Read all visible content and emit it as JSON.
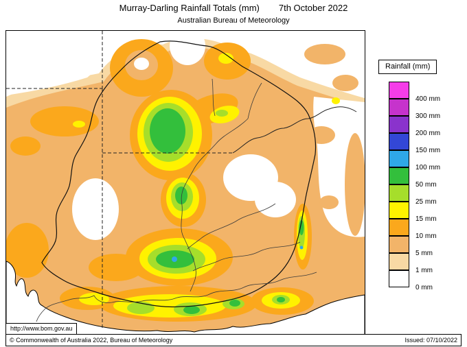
{
  "header": {
    "title": "Murray-Darling Rainfall Totals (mm)",
    "date": "7th October 2022",
    "org": "Australian Bureau of Meteorology"
  },
  "legend": {
    "title": "Rainfall (mm)",
    "items": [
      {
        "label": "400 mm",
        "color": "#F53DE8"
      },
      {
        "label": "300 mm",
        "color": "#C633CC"
      },
      {
        "label": "200 mm",
        "color": "#8A33CC"
      },
      {
        "label": "150 mm",
        "color": "#3347D6"
      },
      {
        "label": "100 mm",
        "color": "#2FA8E8"
      },
      {
        "label": "50 mm",
        "color": "#33BF3C"
      },
      {
        "label": "25 mm",
        "color": "#A6DE2B"
      },
      {
        "label": "15 mm",
        "color": "#FFF200"
      },
      {
        "label": "10 mm",
        "color": "#FBA81C"
      },
      {
        "label": "5 mm",
        "color": "#F2B469"
      },
      {
        "label": "1 mm",
        "color": "#F8D9A4"
      },
      {
        "label": "0 mm",
        "color": "#FFFFFF"
      }
    ]
  },
  "footer": {
    "url": "http://www.bom.gov.au",
    "copyright": "© Commonwealth of Australia 2022, Bureau of Meteorology",
    "issued": "Issued: 07/10/2022"
  },
  "colors": {
    "mm0": "#FFFFFF",
    "mm1": "#F8D9A4",
    "mm5": "#F2B469",
    "mm10": "#FBA81C",
    "mm15": "#FFF200",
    "mm25": "#A6DE2B",
    "mm50": "#33BF3C",
    "mm100": "#2FA8E8",
    "mm150": "#3347D6",
    "border": "#222222",
    "basin": "#111111",
    "river": "#3A3A3A"
  }
}
